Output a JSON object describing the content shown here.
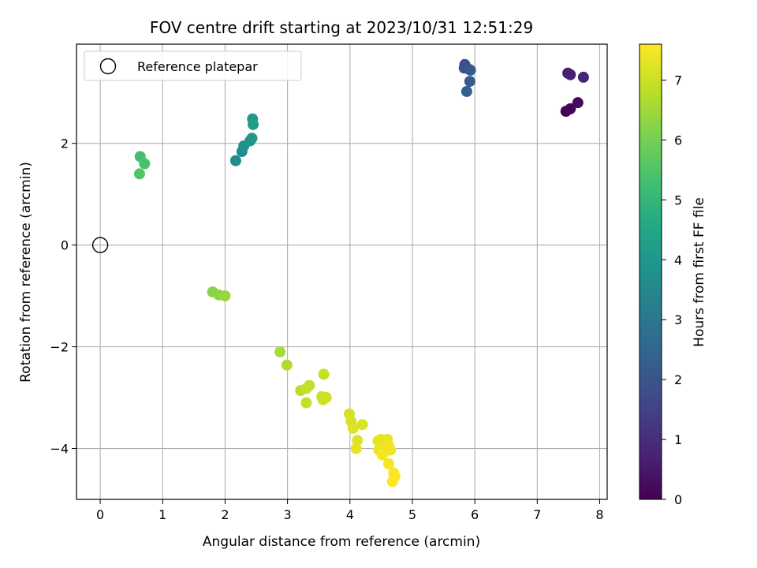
{
  "chart_data": {
    "type": "scatter",
    "title": "FOV centre drift starting at 2023/10/31 12:51:29",
    "xlabel": "Angular distance from reference (arcmin)",
    "ylabel": "Rotation from reference (arcmin)",
    "xlim": [
      -0.38,
      8.12
    ],
    "ylim": [
      -5.0,
      3.95
    ],
    "xticks": [
      0,
      1,
      2,
      3,
      4,
      5,
      6,
      7,
      8
    ],
    "yticks": [
      -4,
      -2,
      0,
      2
    ],
    "xtick_labels": [
      "0",
      "1",
      "2",
      "3",
      "4",
      "5",
      "6",
      "7",
      "8"
    ],
    "ytick_labels": [
      "−4",
      "−2",
      "0",
      "2"
    ],
    "grid": true,
    "legend": {
      "placement": "top-left",
      "entries": [
        {
          "label": "Reference platepar",
          "marker": "open-circle"
        }
      ]
    },
    "reference_point": {
      "x": 0,
      "y": 0
    },
    "colorbar": {
      "label": "Hours from first FF file",
      "colormap": "viridis",
      "range": [
        0,
        7.6
      ],
      "ticks": [
        0,
        1,
        2,
        3,
        4,
        5,
        6,
        7
      ],
      "tick_labels": [
        "0",
        "1",
        "2",
        "3",
        "4",
        "5",
        "6",
        "7"
      ]
    },
    "points": [
      {
        "x": 7.46,
        "y": 2.63,
        "t": 0.0
      },
      {
        "x": 7.53,
        "y": 2.68,
        "t": 0.1
      },
      {
        "x": 7.65,
        "y": 2.8,
        "t": 0.2
      },
      {
        "x": 7.49,
        "y": 3.38,
        "t": 0.6
      },
      {
        "x": 7.53,
        "y": 3.35,
        "t": 0.7
      },
      {
        "x": 7.74,
        "y": 3.3,
        "t": 0.8
      },
      {
        "x": 5.84,
        "y": 3.55,
        "t": 1.8
      },
      {
        "x": 5.83,
        "y": 3.48,
        "t": 1.9
      },
      {
        "x": 5.9,
        "y": 3.46,
        "t": 2.0
      },
      {
        "x": 5.93,
        "y": 3.44,
        "t": 2.1
      },
      {
        "x": 5.92,
        "y": 3.22,
        "t": 2.2
      },
      {
        "x": 5.87,
        "y": 3.02,
        "t": 2.3
      },
      {
        "x": 2.17,
        "y": 1.66,
        "t": 3.6
      },
      {
        "x": 2.27,
        "y": 1.84,
        "t": 3.7
      },
      {
        "x": 2.3,
        "y": 1.95,
        "t": 3.8
      },
      {
        "x": 2.4,
        "y": 2.05,
        "t": 3.9
      },
      {
        "x": 2.43,
        "y": 2.1,
        "t": 4.0
      },
      {
        "x": 2.44,
        "y": 2.48,
        "t": 4.1
      },
      {
        "x": 2.45,
        "y": 2.37,
        "t": 4.2
      },
      {
        "x": 0.64,
        "y": 1.74,
        "t": 5.3
      },
      {
        "x": 0.71,
        "y": 1.6,
        "t": 5.4
      },
      {
        "x": 0.63,
        "y": 1.4,
        "t": 5.5
      },
      {
        "x": 1.8,
        "y": -0.92,
        "t": 6.2
      },
      {
        "x": 1.9,
        "y": -0.98,
        "t": 6.3
      },
      {
        "x": 2.0,
        "y": -1.0,
        "t": 6.4
      },
      {
        "x": 2.88,
        "y": -2.1,
        "t": 6.6
      },
      {
        "x": 2.99,
        "y": -2.36,
        "t": 6.7
      },
      {
        "x": 3.21,
        "y": -2.86,
        "t": 6.8
      },
      {
        "x": 3.35,
        "y": -2.76,
        "t": 6.85
      },
      {
        "x": 3.3,
        "y": -2.82,
        "t": 6.9
      },
      {
        "x": 3.3,
        "y": -3.1,
        "t": 6.9
      },
      {
        "x": 3.58,
        "y": -2.54,
        "t": 6.95
      },
      {
        "x": 3.55,
        "y": -2.98,
        "t": 7.0
      },
      {
        "x": 3.62,
        "y": -3.0,
        "t": 7.0
      },
      {
        "x": 3.57,
        "y": -3.04,
        "t": 7.05
      },
      {
        "x": 3.99,
        "y": -3.32,
        "t": 7.1
      },
      {
        "x": 4.02,
        "y": -3.47,
        "t": 7.15
      },
      {
        "x": 4.05,
        "y": -3.6,
        "t": 7.2
      },
      {
        "x": 4.2,
        "y": -3.53,
        "t": 7.2
      },
      {
        "x": 4.12,
        "y": -3.84,
        "t": 7.25
      },
      {
        "x": 4.1,
        "y": -4.0,
        "t": 7.3
      },
      {
        "x": 4.45,
        "y": -3.85,
        "t": 7.3
      },
      {
        "x": 4.5,
        "y": -3.82,
        "t": 7.35
      },
      {
        "x": 4.6,
        "y": -3.82,
        "t": 7.35
      },
      {
        "x": 4.46,
        "y": -4.03,
        "t": 7.4
      },
      {
        "x": 4.55,
        "y": -4.0,
        "t": 7.4
      },
      {
        "x": 4.62,
        "y": -3.95,
        "t": 7.45
      },
      {
        "x": 4.65,
        "y": -4.03,
        "t": 7.45
      },
      {
        "x": 4.52,
        "y": -4.13,
        "t": 7.5
      },
      {
        "x": 4.62,
        "y": -4.3,
        "t": 7.5
      },
      {
        "x": 4.7,
        "y": -4.48,
        "t": 7.55
      },
      {
        "x": 4.72,
        "y": -4.55,
        "t": 7.55
      },
      {
        "x": 4.68,
        "y": -4.65,
        "t": 7.6
      }
    ]
  }
}
